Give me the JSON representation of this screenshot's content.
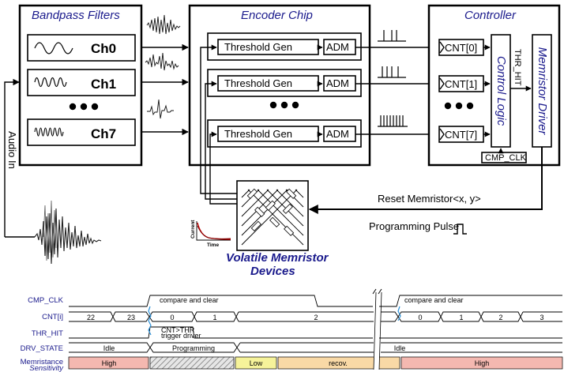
{
  "blocks": {
    "bandpass_title": "Bandpass Filters",
    "encoder_title": "Encoder Chip",
    "controller_title": "Controller",
    "memristor_title_line1": "Volatile Memristor",
    "memristor_title_line2": "Devices"
  },
  "channels": [
    "Ch0",
    "Ch1",
    "Ch7"
  ],
  "encoder": {
    "threshold_label": "Threshold Gen",
    "adm_label": "ADM"
  },
  "controller": {
    "counters": [
      "CNT[0]",
      "CNT[1]",
      "CNT[7]"
    ],
    "control_logic": "Control Logic",
    "memristor_driver": "Memristor Driver",
    "thr_hit": "THR_HIT",
    "cmp_clk": "CMP_CLK"
  },
  "signals": {
    "audio_in": "Audio In",
    "reset_memristor": "Reset Memristor<x, y>",
    "programming_pulse": "Programming Pulse"
  },
  "inset": {
    "ylabel": "Current",
    "xlabel": "Time"
  },
  "timing": {
    "row_labels": [
      "CMP_CLK",
      "CNT[i]",
      "THR_HIT",
      "DRV_STATE",
      "Memristance"
    ],
    "memristance_sub": "Sensitivity",
    "compare_clear_1": "compare and clear",
    "compare_clear_2": "compare and clear",
    "cnt_values": [
      "22",
      "23",
      "0",
      "1",
      "2",
      "0",
      "1",
      "2",
      "3"
    ],
    "thr_note_line1": "CNT>THR",
    "thr_note_line2": "trigger driver",
    "drv_states": [
      "Idle",
      "Programming",
      "Idle"
    ],
    "memristance_states": [
      "High",
      "Low",
      "recov.",
      "High"
    ],
    "colors": {
      "high": "#f4b8b0",
      "low": "#f6f39a",
      "recov": "#f9d9a6",
      "label": "#1a1a8c"
    }
  }
}
